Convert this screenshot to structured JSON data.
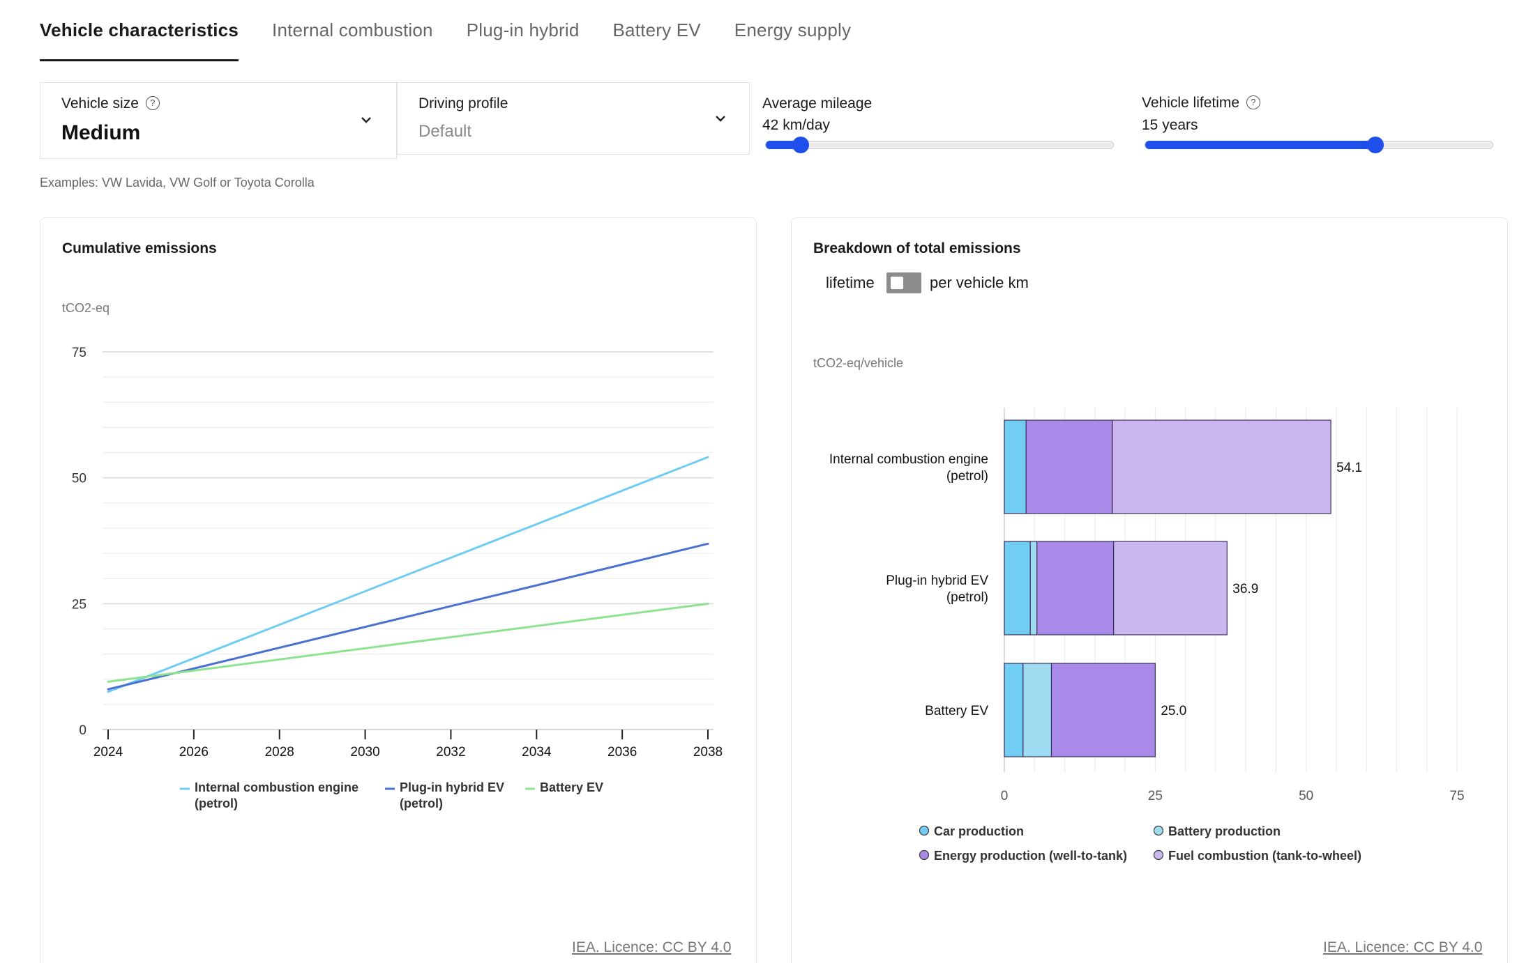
{
  "tabs": [
    {
      "label": "Vehicle characteristics",
      "active": true
    },
    {
      "label": "Internal combustion",
      "active": false
    },
    {
      "label": "Plug-in hybrid",
      "active": false
    },
    {
      "label": "Battery EV",
      "active": false
    },
    {
      "label": "Energy supply",
      "active": false
    }
  ],
  "controls": {
    "vehicle_size": {
      "label": "Vehicle size",
      "value": "Medium",
      "help_icon": "question-circle-icon"
    },
    "driving_profile": {
      "label": "Driving profile",
      "value": "Default"
    },
    "average_mileage": {
      "label": "Average mileage",
      "value_text": "42 km/day",
      "fraction": 0.1
    },
    "vehicle_lifetime": {
      "label": "Vehicle lifetime",
      "value_text": "15 years",
      "fraction": 0.66,
      "help_icon": "question-circle-icon"
    },
    "examples": "Examples: VW Lavida, VW Golf or Toyota Corolla"
  },
  "colors": {
    "accent": "#1f4ee8",
    "ice": "#6fcdf3",
    "phev": "#4a70d1",
    "bev": "#8de38f",
    "car_production": "#72cdf4",
    "battery_production": "#9fdcf2",
    "energy_production": "#a98ae8",
    "fuel_combustion": "#cbb7ef"
  },
  "left_panel": {
    "title": "Cumulative emissions",
    "unit": "tCO2-eq",
    "licence": "IEA. Licence: CC BY 4.0"
  },
  "right_panel": {
    "title": "Breakdown of total emissions",
    "toggle_left": "lifetime",
    "toggle_right": "per vehicle km",
    "unit": "tCO2-eq/vehicle",
    "licence": "IEA. Licence: CC BY 4.0"
  },
  "chart_data": [
    {
      "type": "line",
      "title": "Cumulative emissions",
      "ylabel": "tCO2-eq",
      "x": [
        2024,
        2038
      ],
      "xticks": [
        "2024",
        "2026",
        "2028",
        "2030",
        "2032",
        "2034",
        "2036",
        "2038"
      ],
      "yticks": [
        "0",
        "25",
        "50",
        "75"
      ],
      "ylim": [
        0,
        75
      ],
      "xlim": [
        2024,
        2038
      ],
      "grid": true,
      "legend_position": "bottom",
      "series": [
        {
          "name": "Internal combustion engine (petrol)",
          "name_lines": [
            "Internal combustion engine",
            "(petrol)"
          ],
          "values": [
            7.5,
            54.1
          ],
          "color": "#6fcdf3"
        },
        {
          "name": "Plug-in hybrid EV (petrol)",
          "name_lines": [
            "Plug-in hybrid EV",
            "(petrol)"
          ],
          "values": [
            8.0,
            36.9
          ],
          "color": "#4a70d1"
        },
        {
          "name": "Battery EV",
          "name_lines": [
            "Battery EV"
          ],
          "values": [
            9.5,
            25.0
          ],
          "color": "#8de38f"
        }
      ]
    },
    {
      "type": "bar",
      "orientation": "horizontal",
      "stacked": true,
      "title": "Breakdown of total emissions",
      "ylabel": "tCO2-eq/vehicle",
      "categories": [
        "Internal combustion engine (petrol)",
        "Plug-in hybrid EV (petrol)",
        "Battery EV"
      ],
      "category_lines": [
        [
          "Internal combustion engine",
          "(petrol)"
        ],
        [
          "Plug-in hybrid EV",
          "(petrol)"
        ],
        [
          "Battery EV"
        ]
      ],
      "xlim": [
        0,
        75
      ],
      "xticks": [
        "0",
        "25",
        "50",
        "75"
      ],
      "grid": true,
      "legend_position": "bottom",
      "totals": [
        "54.1",
        "36.9",
        "25.0"
      ],
      "series": [
        {
          "name": "Car production",
          "values": [
            3.6,
            4.3,
            3.1
          ],
          "color": "#72cdf4"
        },
        {
          "name": "Battery production",
          "values": [
            0,
            1.1,
            4.7
          ],
          "color": "#9fdcf2"
        },
        {
          "name": "Energy production (well-to-tank)",
          "values": [
            14.3,
            12.7,
            17.2
          ],
          "color": "#a98ae8"
        },
        {
          "name": "Fuel combustion (tank-to-wheel)",
          "values": [
            36.2,
            18.8,
            0
          ],
          "color": "#cbb7ef"
        }
      ]
    }
  ]
}
